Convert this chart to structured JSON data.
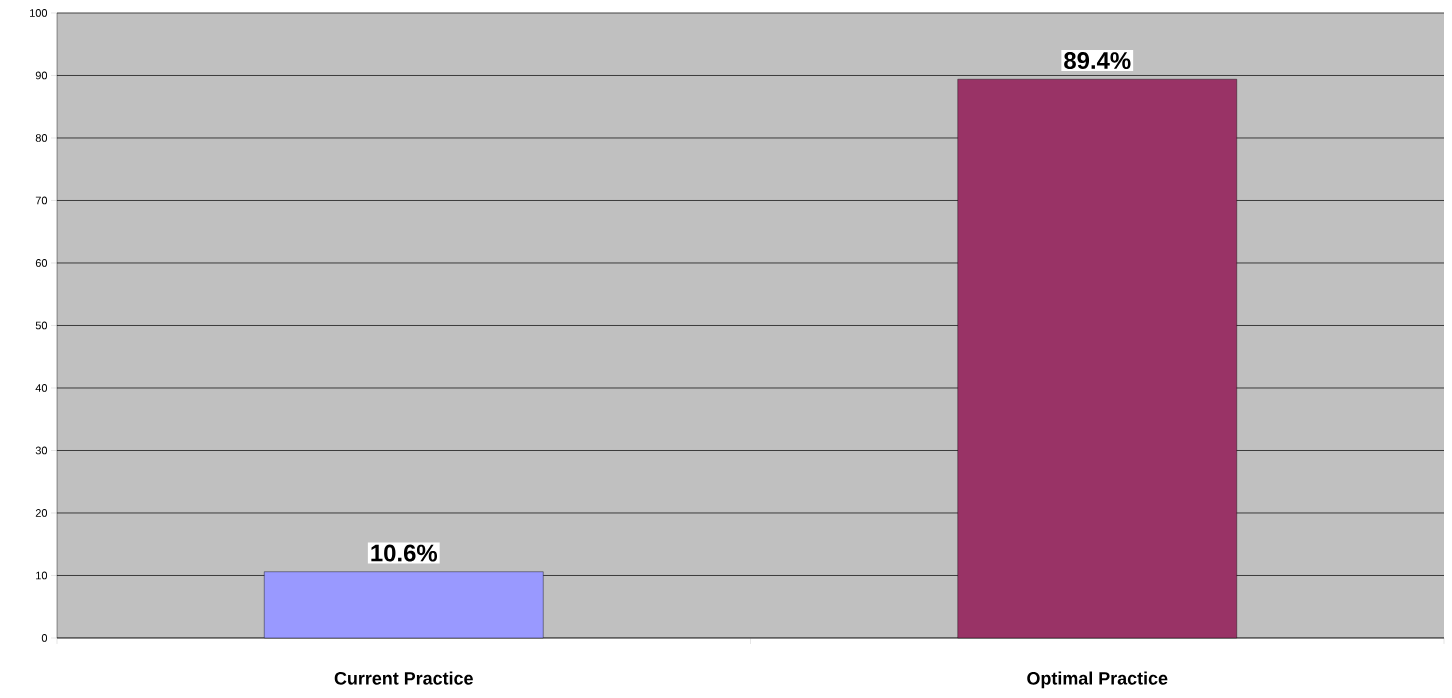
{
  "chart_data": {
    "type": "bar",
    "categories": [
      "Current Practice",
      "Optimal Practice"
    ],
    "values": [
      10.6,
      89.4
    ],
    "colors": [
      "#9999ff",
      "#993366"
    ],
    "value_labels": [
      "10.6%",
      "89.4%"
    ],
    "ylim": [
      0,
      100
    ],
    "yticks": [
      0,
      10,
      20,
      30,
      40,
      50,
      60,
      70,
      80,
      90,
      100
    ],
    "grid": "y"
  }
}
